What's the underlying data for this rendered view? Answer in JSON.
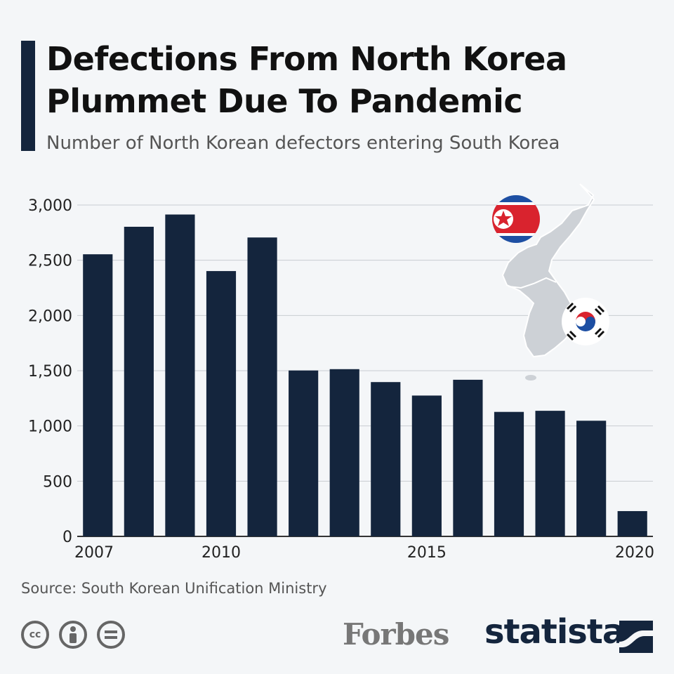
{
  "title": "Defections From North Korea Plummet Due To Pandemic",
  "subtitle": "Number of North Korean defectors entering South Korea",
  "source": "Source: South Korean Unification Ministry",
  "brand": {
    "publisher": "Forbes",
    "provider": "statista"
  },
  "cc_icons": [
    "cc-icon",
    "attribution-icon",
    "no-derivatives-icon"
  ],
  "colors": {
    "bar": "#14253d",
    "background": "#f4f6f8",
    "grid": "#c8ccd2"
  },
  "chart_data": {
    "type": "bar",
    "categories": [
      "2007",
      "2008",
      "2009",
      "2010",
      "2011",
      "2012",
      "2013",
      "2014",
      "2015",
      "2016",
      "2017",
      "2018",
      "2019",
      "2020"
    ],
    "x_tick_labels": [
      "2007",
      "2010",
      "2015",
      "2020"
    ],
    "values": [
      2554,
      2803,
      2914,
      2402,
      2706,
      1502,
      1514,
      1397,
      1275,
      1418,
      1127,
      1137,
      1047,
      229
    ],
    "y_ticks": [
      0,
      500,
      1000,
      1500,
      2000,
      2500,
      3000
    ],
    "y_tick_labels": [
      "0",
      "500",
      "1,000",
      "1,500",
      "2,000",
      "2,500",
      "3,000"
    ],
    "ylim": [
      0,
      3000
    ],
    "grid": true,
    "xlabel": "",
    "ylabel": ""
  }
}
